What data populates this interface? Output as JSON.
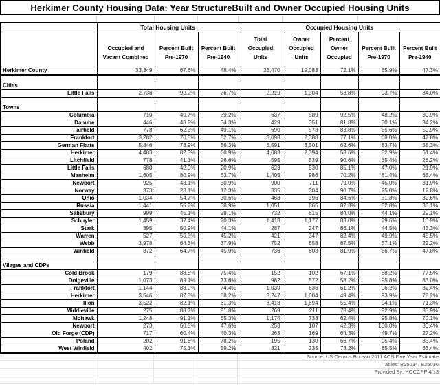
{
  "chart_data": {
    "type": "table",
    "title": "Herkimer County Housing Data: Year StructureBuilt and Owner Occupied Housing Units",
    "column_groups": [
      {
        "label": "Total Housing Units",
        "span": 3
      },
      {
        "label": "Occupied Housing Units",
        "span": 5
      }
    ],
    "columns": [
      "Occupied and Vacant Combined",
      "Percent Built Pre-1970",
      "Percent Built Pre-1940",
      "Total Occupied Units",
      "Owner Occupied Units",
      "Percent Owner Occupied",
      "Percent Built Pre-1970",
      "Percent Built Pre-1940"
    ],
    "rows": [
      {
        "type": "data",
        "name": "Herkimer County",
        "name_align": "left",
        "county": true,
        "values": [
          "33,349",
          "67.6%",
          "48.4%",
          "26,470",
          "19,083",
          "72.1%",
          "65.9%",
          "47.3%"
        ]
      },
      {
        "type": "blank"
      },
      {
        "type": "section",
        "name": "Cities"
      },
      {
        "type": "data",
        "name": "Little Falls",
        "values": [
          "2,738",
          "92.2%",
          "76.7%",
          "2,219",
          "1,304",
          "58.8%",
          "93.7%",
          "84.0%"
        ]
      },
      {
        "type": "blank"
      },
      {
        "type": "section",
        "name": "Towns"
      },
      {
        "type": "data",
        "name": "Columbia",
        "values": [
          "710",
          "49.7%",
          "39.2%",
          "637",
          "589",
          "92.5%",
          "48.2%",
          "39.9%"
        ]
      },
      {
        "type": "data",
        "name": "Danube",
        "values": [
          "446",
          "48.2%",
          "34.3%",
          "429",
          "351",
          "81.8%",
          "50.1%",
          "34.2%"
        ]
      },
      {
        "type": "data",
        "name": "Fairfield",
        "values": [
          "778",
          "62.3%",
          "49.1%",
          "690",
          "578",
          "83.8%",
          "65.6%",
          "50.9%"
        ]
      },
      {
        "type": "data",
        "name": "Frankfort",
        "values": [
          "3,282",
          "70.5%",
          "52.7%",
          "3,098",
          "2,388",
          "77.1%",
          "68.0%",
          "47.8%"
        ]
      },
      {
        "type": "data",
        "name": "German Flatts",
        "values": [
          "5,846",
          "78.9%",
          "56.3%",
          "5,591",
          "3,501",
          "62.6%",
          "83.7%",
          "58.3%"
        ]
      },
      {
        "type": "data",
        "name": "Herkimer",
        "values": [
          "4,483",
          "82.3%",
          "60.9%",
          "4,083",
          "2,394",
          "58.6%",
          "82.9%",
          "61.4%"
        ]
      },
      {
        "type": "data",
        "name": "Litchfield",
        "values": [
          "778",
          "41.1%",
          "26.6%",
          "595",
          "539",
          "90.6%",
          "35.4%",
          "28.2%"
        ]
      },
      {
        "type": "data",
        "name": "Little Falls",
        "values": [
          "680",
          "42.9%",
          "20.9%",
          "623",
          "530",
          "85.1%",
          "47.0%",
          "21.9%"
        ]
      },
      {
        "type": "data",
        "name": "Manheim",
        "values": [
          "1,605",
          "80.9%",
          "63.7%",
          "1,405",
          "986",
          "70.2%",
          "81.4%",
          "65.4%"
        ]
      },
      {
        "type": "data",
        "name": "Newport",
        "values": [
          "925",
          "43.1%",
          "30.9%",
          "900",
          "711",
          "79.0%",
          "45.0%",
          "31.9%"
        ]
      },
      {
        "type": "data",
        "name": "Norway",
        "values": [
          "373",
          "23.1%",
          "12.3%",
          "335",
          "304",
          "90.7%",
          "25.0%",
          "12.8%"
        ]
      },
      {
        "type": "data",
        "name": "Ohio",
        "values": [
          "1,034",
          "54.7%",
          "30.6%",
          "468",
          "396",
          "84.6%",
          "51.8%",
          "32.6%"
        ]
      },
      {
        "type": "data",
        "name": "Russia",
        "values": [
          "1,441",
          "55.2%",
          "38.9%",
          "1,051",
          "865",
          "82.3%",
          "52.8%",
          "36.1%"
        ]
      },
      {
        "type": "data",
        "name": "Salisbury",
        "values": [
          "999",
          "45.1%",
          "29.1%",
          "732",
          "615",
          "84.0%",
          "44.1%",
          "29.1%"
        ]
      },
      {
        "type": "data",
        "name": "Schuyler",
        "values": [
          "1,459",
          "37.4%",
          "20.3%",
          "1,418",
          "1,177",
          "83.0%",
          "29.6%",
          "10.9%"
        ]
      },
      {
        "type": "data",
        "name": "Stark",
        "values": [
          "395",
          "50.9%",
          "44.1%",
          "287",
          "247",
          "86.1%",
          "44.5%",
          "43.3%"
        ]
      },
      {
        "type": "data",
        "name": "Warren",
        "values": [
          "527",
          "50.5%",
          "45.2%",
          "421",
          "347",
          "82.4%",
          "49.9%",
          "45.5%"
        ]
      },
      {
        "type": "data",
        "name": "Webb",
        "values": [
          "3,978",
          "64.3%",
          "37.9%",
          "752",
          "658",
          "87.5%",
          "57.1%",
          "22.2%"
        ]
      },
      {
        "type": "data",
        "name": "Winfield",
        "values": [
          "872",
          "64.7%",
          "45.9%",
          "736",
          "603",
          "81.9%",
          "66.7%",
          "47.8%"
        ]
      },
      {
        "type": "blank"
      },
      {
        "type": "section",
        "name": "Vilages and CDPs"
      },
      {
        "type": "data",
        "name": "Cold Brook",
        "values": [
          "179",
          "88.8%",
          "75.4%",
          "152",
          "102",
          "67.1%",
          "88.2%",
          "77.5%"
        ]
      },
      {
        "type": "data",
        "name": "Dolgeville",
        "values": [
          "1,073",
          "89.1%",
          "73.6%",
          "982",
          "572",
          "58.2%",
          "95.8%",
          "83.0%"
        ]
      },
      {
        "type": "data",
        "name": "Frankfort",
        "values": [
          "1,144",
          "88.0%",
          "74.4%",
          "1,039",
          "636",
          "61.2%",
          "96.2%",
          "82.4%"
        ]
      },
      {
        "type": "data",
        "name": "Herkimer",
        "values": [
          "3,546",
          "87.5%",
          "68.2%",
          "3,247",
          "1,604",
          "49.4%",
          "93.9%",
          "76.2%"
        ]
      },
      {
        "type": "data",
        "name": "Ilion",
        "values": [
          "3,522",
          "82.1%",
          "61.3%",
          "3,418",
          "1,894",
          "55.4%",
          "94.1%",
          "71.3%"
        ]
      },
      {
        "type": "data",
        "name": "Middleville",
        "values": [
          "275",
          "88.7%",
          "81.8%",
          "269",
          "211",
          "78.4%",
          "92.9%",
          "83.9%"
        ]
      },
      {
        "type": "data",
        "name": "Mohawk",
        "values": [
          "1,248",
          "91.1%",
          "65.3%",
          "1,174",
          "733",
          "62.4%",
          "95.8%",
          "70.1%"
        ]
      },
      {
        "type": "data",
        "name": "Newport",
        "values": [
          "273",
          "60.8%",
          "47.6%",
          "253",
          "107",
          "42.3%",
          "100.0%",
          "80.4%"
        ]
      },
      {
        "type": "data",
        "name": "Old Forge (CDP)",
        "values": [
          "717",
          "60.4%",
          "40.3%",
          "263",
          "169",
          "64.3%",
          "49.7%",
          "27.2%"
        ]
      },
      {
        "type": "data",
        "name": "Poland",
        "values": [
          "202",
          "91.6%",
          "78.2%",
          "195",
          "130",
          "66.7%",
          "95.4%",
          "85.4%"
        ]
      },
      {
        "type": "data",
        "name": "West Winfield",
        "values": [
          "402",
          "75.1%",
          "59.2%",
          "321",
          "235",
          "73.2%",
          "85.5%",
          "63.4%"
        ]
      }
    ],
    "footer": [
      "Source: US Census Bureau 2011 ACS Five Year Estimate",
      "Tables: B25034, B25036",
      "Provided By: HOCCPP 4/13"
    ]
  },
  "colors": {
    "border": "#000000",
    "faint_grid": "#d9d9d9",
    "footer_text": "#4d4d4d",
    "background": "#ffffff"
  }
}
